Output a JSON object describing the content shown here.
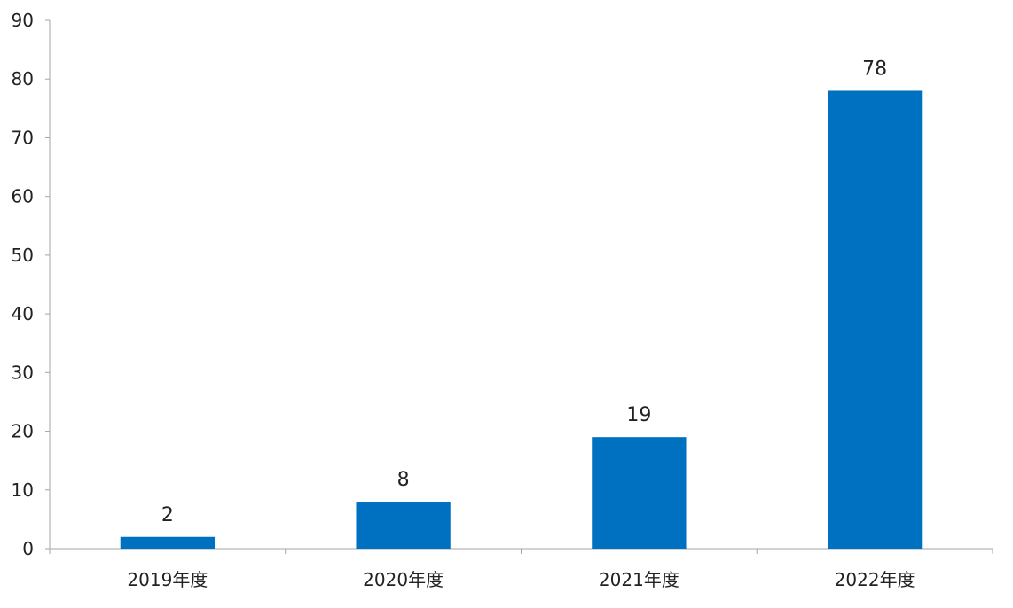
{
  "chart_data": {
    "type": "bar",
    "categories": [
      "2019年度",
      "2020年度",
      "2021年度",
      "2022年度"
    ],
    "values": [
      2,
      8,
      19,
      78
    ],
    "data_labels": [
      "2",
      "8",
      "19",
      "78"
    ],
    "title": "",
    "xlabel": "",
    "ylabel": "",
    "ylim": [
      0,
      90
    ],
    "y_ticks": [
      0,
      10,
      20,
      30,
      40,
      50,
      60,
      70,
      80,
      90
    ],
    "y_tick_labels": [
      "0",
      "10",
      "20",
      "30",
      "40",
      "50",
      "60",
      "70",
      "80",
      "90"
    ],
    "grid": false,
    "legend": "none",
    "bar_color": "#0070C0"
  }
}
